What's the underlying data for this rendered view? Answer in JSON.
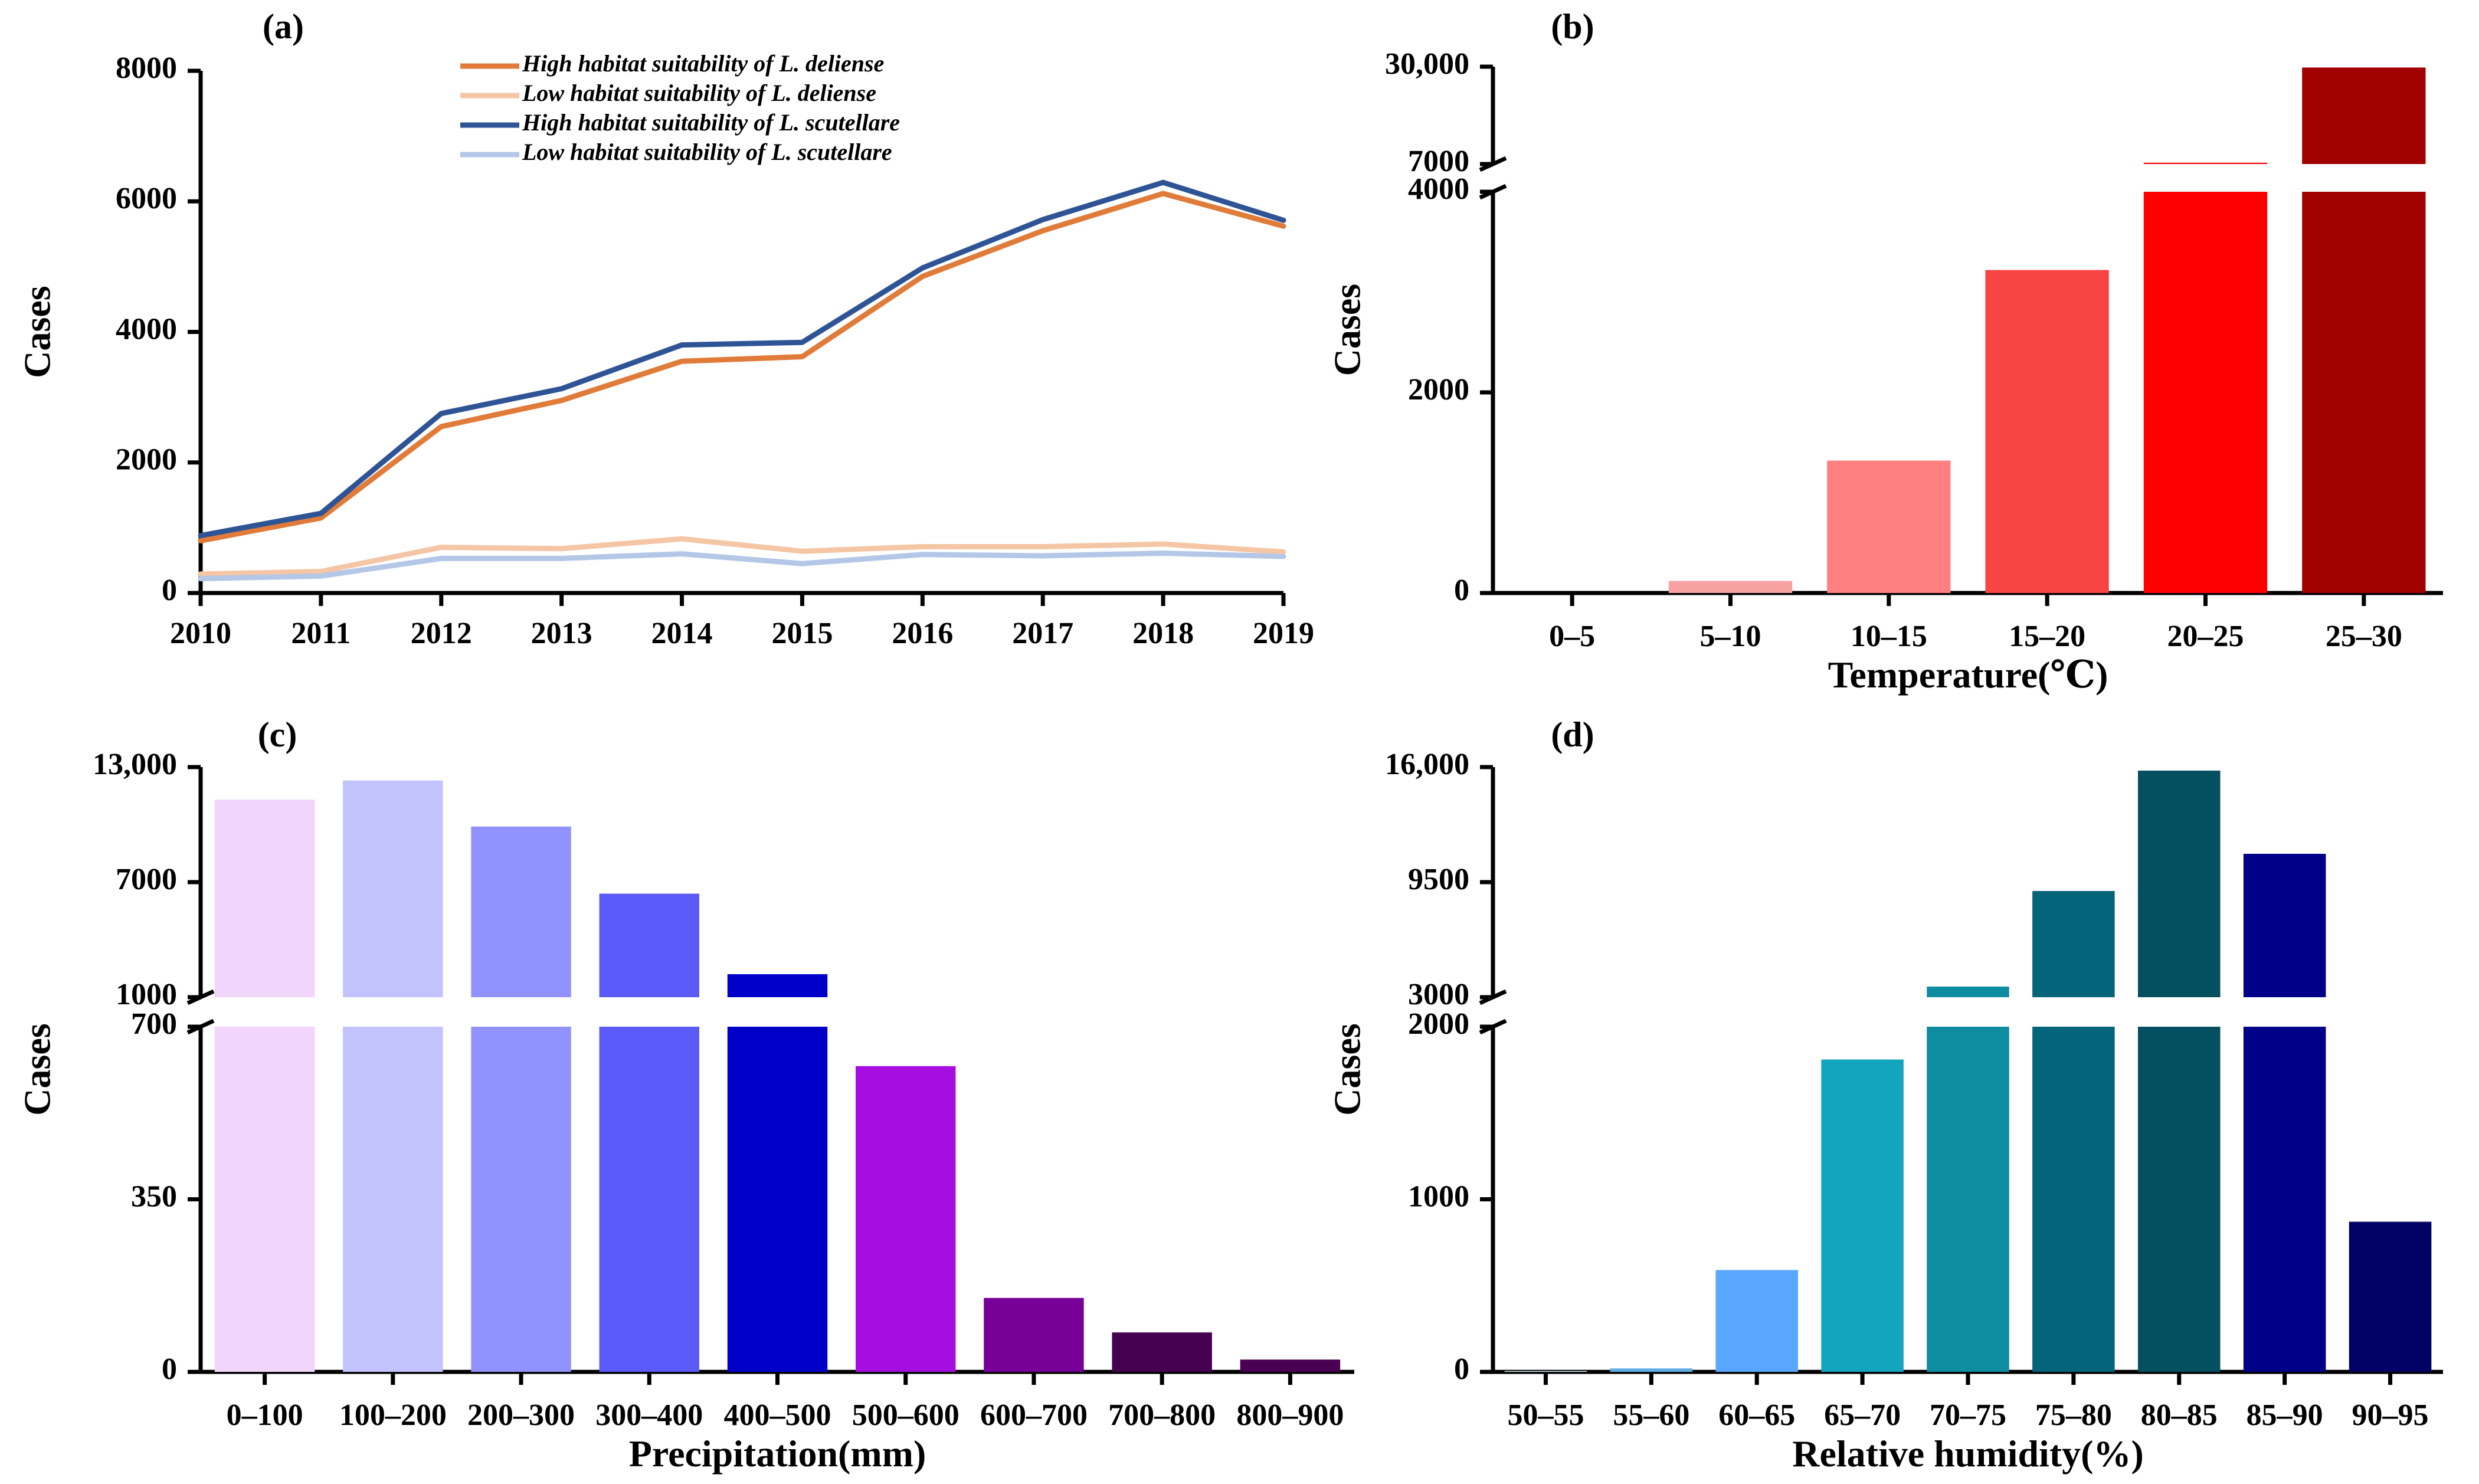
{
  "chart_data": [
    {
      "panel": "(a)",
      "type": "line",
      "xlabel": "",
      "ylabel": "Cases",
      "x": [
        2010,
        2011,
        2012,
        2013,
        2014,
        2015,
        2016,
        2017,
        2018,
        2019
      ],
      "x_tick_labels": [
        "2010",
        "2011",
        "2012",
        "2013",
        "2014",
        "2015",
        "2016",
        "2017",
        "2018",
        "2019"
      ],
      "ylim": [
        0,
        8000
      ],
      "y_ticks": [
        0,
        2000,
        4000,
        6000,
        8000
      ],
      "y_tick_labels": [
        "0",
        "2000",
        "4000",
        "6000",
        "8000"
      ],
      "legend_position": "top-center",
      "series": [
        {
          "name": "High habitat suitability of L. deliense",
          "color": "#E07B39",
          "values": [
            800,
            1150,
            2550,
            2950,
            3550,
            3620,
            4850,
            5550,
            6120,
            5620
          ]
        },
        {
          "name": "Low habitat suitability of L. deliense",
          "color": "#F5C6A5",
          "values": [
            290,
            330,
            700,
            680,
            830,
            640,
            710,
            710,
            750,
            630
          ]
        },
        {
          "name": "High habitat suitability of L. scutellare",
          "color": "#2F5496",
          "values": [
            880,
            1220,
            2750,
            3130,
            3800,
            3840,
            4980,
            5720,
            6290,
            5710
          ]
        },
        {
          "name": "Low habitat suitability of L. scutellare",
          "color": "#B4C7E7",
          "values": [
            220,
            260,
            530,
            530,
            600,
            450,
            590,
            570,
            610,
            560
          ]
        }
      ]
    },
    {
      "panel": "(b)",
      "type": "bar",
      "xlabel": "Temperature(℃)",
      "ylabel": "Cases",
      "categories": [
        "0–5",
        "5–10",
        "10–15",
        "15–20",
        "20–25",
        "25–30"
      ],
      "values": [
        0,
        120,
        1320,
        3220,
        7300,
        29800
      ],
      "colors": [
        "#FFE5E5",
        "#F7A1A1",
        "#FF8080",
        "#F94444",
        "#FF0000",
        "#A00000"
      ],
      "y_break": {
        "lower": [
          0,
          4000
        ],
        "upper": [
          7000,
          30000
        ]
      },
      "y_ticks": [
        0,
        2000,
        4000,
        7000,
        30000
      ],
      "y_tick_labels": [
        "0",
        "2000",
        "4000",
        "7000",
        "30,000"
      ]
    },
    {
      "panel": "(c)",
      "type": "bar",
      "xlabel": "Precipitation(mm)",
      "ylabel": "Cases",
      "categories": [
        "0–100",
        "100–200",
        "200–300",
        "300–400",
        "400–500",
        "500–600",
        "600–700",
        "700–800",
        "800–900"
      ],
      "values": [
        11300,
        12300,
        9900,
        6400,
        2200,
        620,
        150,
        80,
        25
      ],
      "colors": [
        "#F2D5FA",
        "#C2C2FF",
        "#9292FF",
        "#5B5BFA",
        "#0000C8",
        "#A50DE0",
        "#770099",
        "#460050",
        "#4A0052"
      ],
      "y_break": {
        "lower": [
          0,
          700
        ],
        "upper": [
          1000,
          13000
        ]
      },
      "y_ticks": [
        0,
        350,
        700,
        1000,
        7000,
        13000
      ],
      "y_tick_labels": [
        "0",
        "350",
        "700",
        "1000",
        "7000",
        "13,000"
      ]
    },
    {
      "panel": "(d)",
      "type": "bar",
      "xlabel": "Relative humidity(%)",
      "ylabel": "Cases",
      "categories": [
        "50–55",
        "55–60",
        "60–65",
        "65–70",
        "70–75",
        "75–80",
        "80–85",
        "85–90",
        "90–95"
      ],
      "values": [
        5,
        20,
        590,
        1810,
        3600,
        9000,
        15800,
        11100,
        870
      ],
      "colors": [
        "#D9F2F8",
        "#5DADE2",
        "#58A6FF",
        "#13A4BE",
        "#0E8CA0",
        "#04647A",
        "#044F60",
        "#000088",
        "#020266"
      ],
      "y_break": {
        "lower": [
          0,
          2000
        ],
        "upper": [
          3000,
          16000
        ]
      },
      "y_ticks": [
        0,
        1000,
        2000,
        3000,
        9500,
        16000
      ],
      "y_tick_labels": [
        "0",
        "1000",
        "2000",
        "3000",
        "9500",
        "16,000"
      ]
    }
  ]
}
